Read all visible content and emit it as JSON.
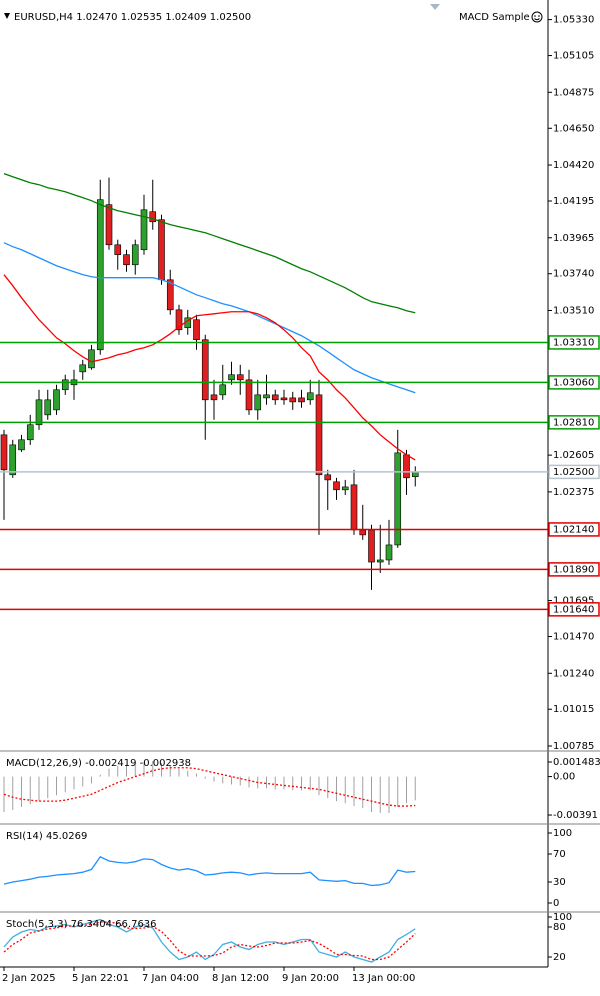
{
  "chart_data": [
    {
      "type": "candlestick",
      "title": "EURUSD,H4  1.02470 1.02535 1.02409 1.02500",
      "expert": "MACD Sample",
      "categories": [
        "2 Jan 2025",
        null,
        null,
        null,
        null,
        null,
        null,
        null,
        "5 Jan 22:01",
        null,
        null,
        null,
        null,
        null,
        null,
        null,
        "7 Jan 04:00",
        null,
        null,
        null,
        null,
        null,
        null,
        null,
        "8 Jan 12:00",
        null,
        null,
        null,
        null,
        null,
        null,
        null,
        "9 Jan 20:00",
        null,
        null,
        null,
        null,
        null,
        null,
        null,
        "13 Jan 00:00",
        null,
        null,
        null,
        null,
        null,
        null,
        null
      ],
      "open": [
        1.02732,
        1.02482,
        1.02638,
        1.02701,
        1.02795,
        1.02857,
        1.02888,
        1.03014,
        1.03045,
        1.03126,
        1.03151,
        1.03264,
        1.04172,
        1.03921,
        1.03859,
        1.03796,
        1.0389,
        1.04128,
        1.04078,
        1.03702,
        1.03514,
        1.03402,
        1.03452,
        1.03327,
        1.02982,
        1.02982,
        1.03076,
        1.03108,
        1.03076,
        1.02888,
        1.02963,
        1.02982,
        1.02963,
        1.02963,
        1.02963,
        1.02951,
        1.02982,
        1.02482,
        1.02438,
        1.02388,
        1.02419,
        1.02137,
        1.02137,
        1.01936,
        1.01949,
        1.02043,
        1.02607,
        1.0247
      ],
      "high": [
        1.02763,
        1.02701,
        1.02732,
        1.02857,
        1.03014,
        1.03014,
        1.03045,
        1.03108,
        1.03139,
        1.03201,
        1.03295,
        1.04328,
        1.04341,
        1.03953,
        1.0389,
        1.03953,
        1.04234,
        1.04328,
        1.04109,
        1.03765,
        1.03546,
        1.03514,
        1.03483,
        1.03358,
        1.03076,
        1.0317,
        1.03189,
        1.0317,
        1.03139,
        1.03076,
        1.03108,
        1.03014,
        1.03014,
        1.03001,
        1.03014,
        1.03076,
        1.03076,
        1.02513,
        1.02463,
        1.0245,
        1.02513,
        1.02294,
        1.02169,
        1.02169,
        1.022,
        1.02763,
        1.02638,
        1.02535
      ],
      "low": [
        1.022,
        1.02463,
        1.02625,
        1.02669,
        1.02763,
        1.02826,
        1.02857,
        1.02982,
        1.02951,
        1.03076,
        1.03139,
        1.03233,
        1.0389,
        1.03765,
        1.03752,
        1.03734,
        1.03859,
        1.04015,
        1.03671,
        1.03483,
        1.03358,
        1.03358,
        1.03264,
        1.02701,
        1.02826,
        1.02951,
        1.03045,
        1.02982,
        1.02857,
        1.02826,
        1.0292,
        1.0292,
        1.0292,
        1.02888,
        1.02901,
        1.0292,
        1.02106,
        1.02262,
        1.02325,
        1.02356,
        1.02106,
        1.02075,
        1.01762,
        1.01868,
        1.01918,
        1.02025,
        1.02356,
        1.02409
      ],
      "close": [
        1.02513,
        1.02669,
        1.02701,
        1.02795,
        1.02951,
        1.02951,
        1.03014,
        1.03076,
        1.03076,
        1.0317,
        1.03264,
        1.04203,
        1.03921,
        1.03859,
        1.03796,
        1.03921,
        1.0414,
        1.04065,
        1.03702,
        1.03514,
        1.03389,
        1.03464,
        1.03327,
        1.02951,
        1.02951,
        1.03045,
        1.03108,
        1.03076,
        1.02888,
        1.02982,
        1.02982,
        1.02951,
        1.02951,
        1.02938,
        1.02938,
        1.02995,
        1.02482,
        1.0245,
        1.02388,
        1.02406,
        1.02137,
        1.02106,
        1.01936,
        1.01949,
        1.02043,
        1.02619,
        1.02463,
        1.025
      ],
      "up_color": "#2ea02e",
      "down_color": "#e02020",
      "series": [
        {
          "color": "#008000",
          "values": [
            1.04366,
            1.04347,
            1.04328,
            1.04309,
            1.04297,
            1.04278,
            1.04266,
            1.04253,
            1.04234,
            1.04216,
            1.04197,
            1.04172,
            1.04153,
            1.04134,
            1.04122,
            1.04109,
            1.04097,
            1.04084,
            1.04065,
            1.04047,
            1.04034,
            1.04022,
            1.04009,
            1.03996,
            1.03978,
            1.03959,
            1.0394,
            1.03921,
            1.03903,
            1.03884,
            1.03865,
            1.03846,
            1.03821,
            1.03796,
            1.03771,
            1.03752,
            1.03727,
            1.03702,
            1.03677,
            1.03652,
            1.03621,
            1.0359,
            1.03565,
            1.03552,
            1.03539,
            1.03527,
            1.03508,
            1.03496
          ]
        },
        {
          "color": "#1e90ff",
          "values": [
            1.03934,
            1.03909,
            1.0389,
            1.03865,
            1.0384,
            1.03815,
            1.0379,
            1.03771,
            1.03752,
            1.03734,
            1.03721,
            1.03715,
            1.03715,
            1.03715,
            1.03715,
            1.03715,
            1.03715,
            1.03715,
            1.03702,
            1.03683,
            1.03658,
            1.03633,
            1.03608,
            1.0359,
            1.03571,
            1.03552,
            1.03539,
            1.03521,
            1.03502,
            1.03477,
            1.03452,
            1.03427,
            1.03402,
            1.03377,
            1.03352,
            1.0332,
            1.03289,
            1.03252,
            1.03214,
            1.03176,
            1.03139,
            1.03114,
            1.03089,
            1.0307,
            1.03051,
            1.03032,
            1.03014,
            1.02995
          ]
        },
        {
          "color": "#ff0000",
          "values": [
            1.03734,
            1.03665,
            1.0359,
            1.03521,
            1.03452,
            1.03396,
            1.03339,
            1.03302,
            1.03258,
            1.0322,
            1.03189,
            1.03201,
            1.03214,
            1.03233,
            1.03245,
            1.03264,
            1.03277,
            1.03295,
            1.03327,
            1.03364,
            1.03408,
            1.03446,
            1.03477,
            1.03483,
            1.03489,
            1.03496,
            1.03502,
            1.03502,
            1.03502,
            1.03489,
            1.03464,
            1.03433,
            1.03389,
            1.03339,
            1.03277,
            1.03226,
            1.03126,
            1.03076,
            1.03014,
            1.02963,
            1.02901,
            1.02838,
            1.02788,
            1.02732,
            1.02688,
            1.02644,
            1.02607,
            1.02575
          ]
        }
      ],
      "levels": [
        {
          "value": 1.0331,
          "label": "1.03310",
          "color": "#00a000"
        },
        {
          "value": 1.0306,
          "label": "1.03060",
          "color": "#00a000"
        },
        {
          "value": 1.0281,
          "label": "1.02810",
          "color": "#00a000"
        },
        {
          "value": 1.025,
          "label": "1.02500",
          "color": "#b8c4cc"
        },
        {
          "value": 1.0214,
          "label": "1.02140",
          "color": "#e00000"
        },
        {
          "value": 1.0189,
          "label": "1.01890",
          "color": "#e00000"
        },
        {
          "value": 1.0164,
          "label": "1.01640",
          "color": "#e00000"
        }
      ],
      "ylim": [
        1.0076,
        1.0539
      ],
      "yticks": [
        {
          "value": 1.0533,
          "label": "1.05330"
        },
        1.05105,
        1.04875,
        {
          "value": 1.0465,
          "label": "1.04650"
        },
        {
          "value": 1.0442,
          "label": "1.04420"
        },
        1.04195,
        1.03965,
        {
          "value": 1.0374,
          "label": "1.03740"
        },
        {
          "value": 1.0351,
          "label": "1.03510"
        },
        1.02605,
        1.02375,
        1.01695,
        {
          "value": 1.0147,
          "label": "1.01470"
        },
        {
          "value": 1.0124,
          "label": "1.01240"
        },
        1.01015,
        1.00785
      ]
    },
    {
      "type": "macd",
      "title": "MACD(12,26,9) -0.002419 -0.002938",
      "series": [
        {
          "style": "histogram",
          "color": "#a0a0a0",
          "values": [
            -0.0036,
            -0.0034,
            -0.0031,
            -0.0028,
            -0.0025,
            -0.0022,
            -0.0019,
            -0.0016,
            -0.0013,
            -0.001,
            -0.0007,
            0.0002,
            0.0008,
            0.0011,
            0.0012,
            0.0013,
            0.0015,
            0.0016,
            0.0014,
            0.0011,
            0.0008,
            0.0006,
            0.0003,
            -0.0002,
            -0.0005,
            -0.0007,
            -0.0008,
            -0.0009,
            -0.0011,
            -0.0012,
            -0.0012,
            -0.0013,
            -0.0013,
            -0.0014,
            -0.0014,
            -0.0014,
            -0.0019,
            -0.0022,
            -0.0025,
            -0.0027,
            -0.003,
            -0.0032,
            -0.0036,
            -0.0037,
            -0.0037,
            -0.0031,
            -0.0027,
            -0.002419
          ]
        },
        {
          "style": "dotted",
          "color": "#ff0000",
          "values": [
            -0.0018,
            -0.0021,
            -0.0023,
            -0.0024,
            -0.0025,
            -0.0025,
            -0.0025,
            -0.0024,
            -0.0022,
            -0.002,
            -0.0018,
            -0.0014,
            -0.001,
            -0.0006,
            -0.0003,
            0,
            0.0003,
            0.0006,
            0.0008,
            0.0009,
            0.0009,
            0.0009,
            0.0008,
            0.0006,
            0.0004,
            0.0002,
            0,
            -0.0002,
            -0.0004,
            -0.0006,
            -0.0007,
            -0.0008,
            -0.0009,
            -0.001,
            -0.0011,
            -0.0012,
            -0.0013,
            -0.0015,
            -0.0017,
            -0.0019,
            -0.0021,
            -0.0023,
            -0.0025,
            -0.0027,
            -0.0029,
            -0.003,
            -0.003,
            -0.002938
          ]
        }
      ],
      "ylim": [
        -0.00462,
        0.0024
      ],
      "yticks": [
        0.001483,
        {
          "value": 0,
          "label": "0.00"
        },
        -0.00391
      ]
    },
    {
      "type": "line",
      "title": "RSI(14) 45.0269",
      "series": [
        {
          "style": "solid",
          "color": "#1e90ff",
          "values": [
            27,
            30,
            32,
            34,
            37,
            38,
            40,
            41,
            42,
            44,
            48,
            66,
            60,
            58,
            57,
            59,
            63,
            62,
            55,
            50,
            47,
            49,
            46,
            40,
            41,
            43,
            44,
            43,
            40,
            42,
            43,
            42,
            42,
            42,
            42,
            44,
            33,
            32,
            31,
            32,
            28,
            28,
            25,
            26,
            29,
            47,
            44,
            45.0269
          ]
        }
      ],
      "ylim": [
        -10,
        110
      ],
      "yticks": [
        100,
        70,
        30,
        0
      ]
    },
    {
      "type": "line",
      "title": "Stoch(5,3,3) 76.3404 66.7636",
      "series": [
        {
          "style": "solid",
          "color": "#40b0e0",
          "values": [
            40,
            60,
            70,
            75,
            72,
            80,
            82,
            85,
            80,
            85,
            90,
            95,
            85,
            80,
            70,
            80,
            85,
            78,
            50,
            30,
            15,
            20,
            30,
            15,
            25,
            45,
            50,
            40,
            35,
            45,
            50,
            50,
            45,
            50,
            55,
            55,
            30,
            25,
            20,
            30,
            20,
            15,
            10,
            20,
            30,
            55,
            65,
            76.3404
          ]
        },
        {
          "style": "dotted",
          "color": "#ff0000",
          "values": [
            30,
            45,
            55,
            68,
            72,
            76,
            78,
            82,
            82,
            83,
            85,
            90,
            90,
            87,
            78,
            77,
            78,
            81,
            71,
            53,
            32,
            22,
            22,
            22,
            23,
            28,
            40,
            45,
            42,
            40,
            43,
            48,
            48,
            48,
            50,
            53,
            47,
            37,
            25,
            25,
            23,
            22,
            15,
            15,
            20,
            35,
            50,
            66.7636
          ]
        }
      ],
      "ylim": [
        0,
        106
      ],
      "yticks": [
        100,
        80,
        20
      ]
    }
  ]
}
